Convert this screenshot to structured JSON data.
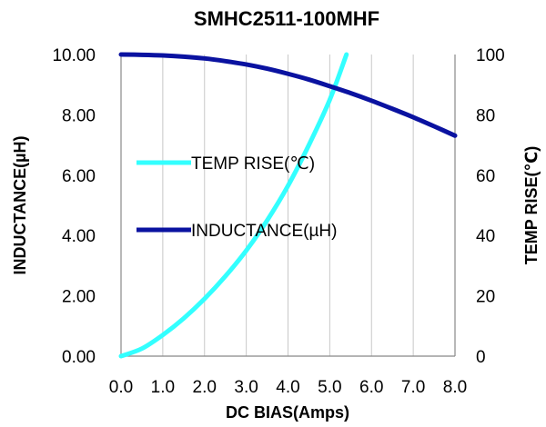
{
  "chart_data": {
    "type": "line",
    "title": "SMHC2511-100MHF",
    "xlabel": "DC BIAS(Amps)",
    "ylabel": "INDUCTANCE(µH)",
    "y2label": "TEMP RISE(℃)",
    "xlim": [
      0,
      8
    ],
    "ylim": [
      0,
      10
    ],
    "y2lim": [
      0,
      100
    ],
    "x_ticks": [
      "0.0",
      "1.0",
      "2.0",
      "3.0",
      "4.0",
      "5.0",
      "6.0",
      "7.0",
      "8.0"
    ],
    "y_ticks": [
      "0.00",
      "2.00",
      "4.00",
      "6.00",
      "8.00",
      "10.00"
    ],
    "y2_ticks": [
      "0",
      "20",
      "40",
      "60",
      "80",
      "100"
    ],
    "grid": "vertical",
    "series": [
      {
        "name": "TEMP RISE(℃)",
        "axis": "right",
        "color": "#33ffff",
        "x": [
          0,
          0.5,
          1.0,
          1.5,
          2.0,
          2.5,
          3.0,
          3.5,
          4.0,
          4.5,
          5.0,
          5.4
        ],
        "y": [
          0,
          2.5,
          7,
          12.5,
          19,
          26.5,
          35,
          45,
          56.5,
          70,
          85,
          100
        ]
      },
      {
        "name": "INDUCTANCE(µH)",
        "axis": "left",
        "color": "#0a12a0",
        "x": [
          0,
          0.5,
          1.0,
          1.5,
          2.0,
          2.5,
          3.0,
          3.5,
          4.0,
          4.5,
          5.0,
          5.5,
          6.0,
          6.5,
          7.0,
          7.5,
          8.0
        ],
        "y": [
          10.0,
          9.99,
          9.97,
          9.93,
          9.87,
          9.78,
          9.67,
          9.53,
          9.36,
          9.17,
          8.95,
          8.72,
          8.47,
          8.2,
          7.92,
          7.62,
          7.31
        ]
      }
    ],
    "legend": {
      "placement": "center-left"
    }
  }
}
